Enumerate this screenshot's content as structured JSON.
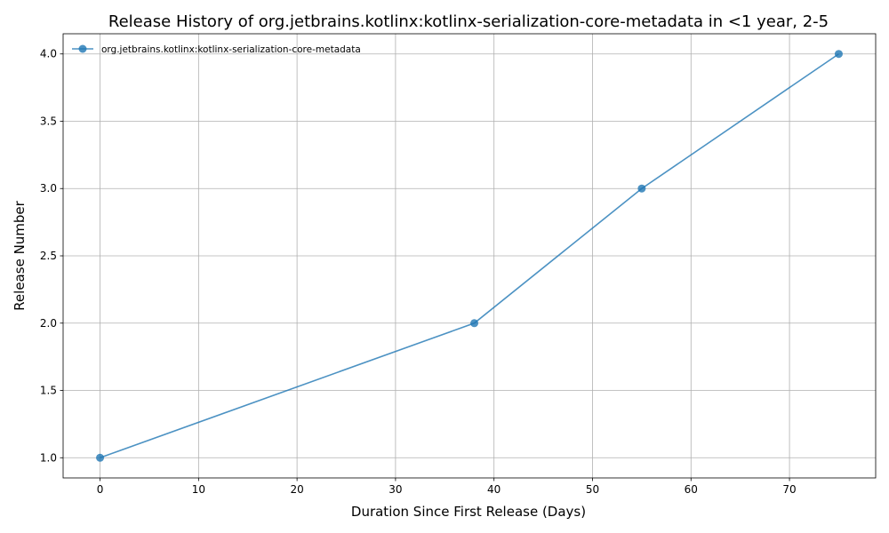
{
  "chart_data": {
    "type": "line",
    "title": "Release History of org.jetbrains.kotlinx:kotlinx-serialization-core-metadata in <1 year, 2-5",
    "xlabel": "Duration Since First Release (Days)",
    "ylabel": "Release Number",
    "xlim": [
      -3.75,
      78.75
    ],
    "ylim": [
      0.85,
      4.15
    ],
    "xticks": [
      0,
      10,
      20,
      30,
      40,
      50,
      60,
      70
    ],
    "yticks": [
      1.0,
      1.5,
      2.0,
      2.5,
      3.0,
      3.5,
      4.0
    ],
    "xtick_labels": [
      "0",
      "10",
      "20",
      "30",
      "40",
      "50",
      "60",
      "70"
    ],
    "ytick_labels": [
      "1.0",
      "1.5",
      "2.0",
      "2.5",
      "3.0",
      "3.5",
      "4.0"
    ],
    "grid": true,
    "legend_position": "top-left",
    "series": [
      {
        "name": "org.jetbrains.kotlinx:kotlinx-serialization-core-metadata",
        "color": "#1f77b4",
        "marker": "circle",
        "x": [
          0,
          38,
          55,
          75
        ],
        "y": [
          1,
          2,
          3,
          4
        ]
      }
    ]
  }
}
